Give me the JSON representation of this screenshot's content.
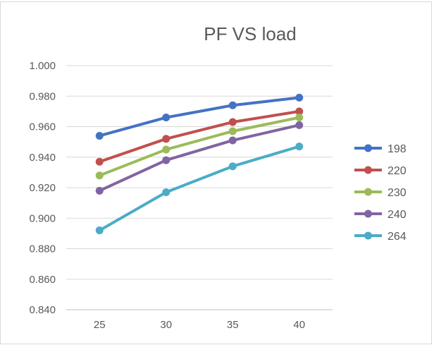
{
  "chart_data": {
    "type": "line",
    "title": "PF VS load",
    "xlabel": "",
    "ylabel": "",
    "categories": [
      "25",
      "30",
      "35",
      "40"
    ],
    "ylim": [
      0.84,
      1.0
    ],
    "yticks": [
      "0.840",
      "0.860",
      "0.880",
      "0.900",
      "0.920",
      "0.940",
      "0.960",
      "0.980",
      "1.000"
    ],
    "grid": "horizontal",
    "legend_position": "right",
    "series": [
      {
        "name": "198",
        "color": "#4472c4",
        "values": [
          0.954,
          0.966,
          0.974,
          0.979
        ]
      },
      {
        "name": "220",
        "color": "#c0504d",
        "values": [
          0.937,
          0.952,
          0.963,
          0.97
        ]
      },
      {
        "name": "230",
        "color": "#9bbb59",
        "values": [
          0.928,
          0.945,
          0.957,
          0.966
        ]
      },
      {
        "name": "240",
        "color": "#8064a2",
        "values": [
          0.918,
          0.938,
          0.951,
          0.961
        ]
      },
      {
        "name": "264",
        "color": "#4bacc6",
        "values": [
          0.892,
          0.917,
          0.934,
          0.947
        ]
      }
    ]
  }
}
